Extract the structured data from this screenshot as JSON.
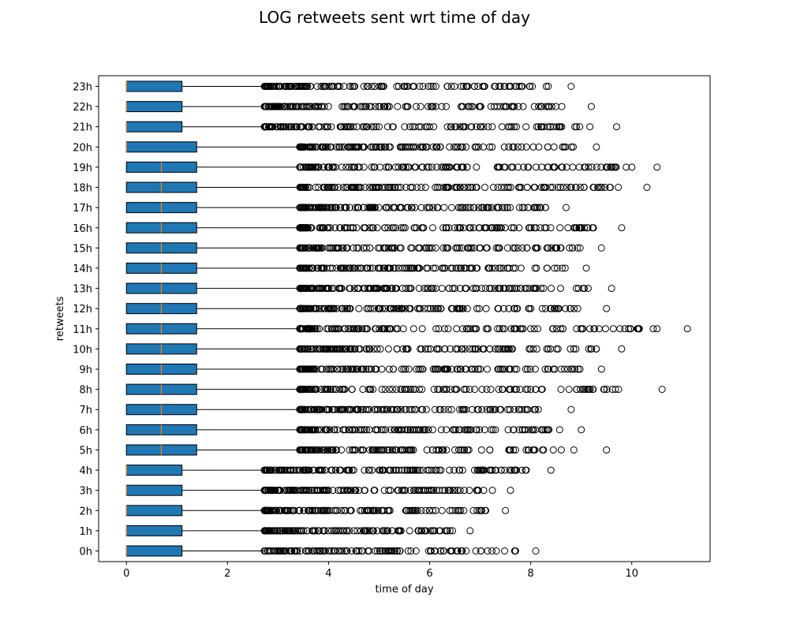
{
  "chart_data": {
    "type": "box",
    "orientation": "horizontal",
    "title": "LOG retweets sent wrt time of day",
    "xlabel": "time of day",
    "ylabel": "retweets",
    "xlim": [
      -0.55,
      11.55
    ],
    "xticks": [
      0,
      2,
      4,
      6,
      8,
      10
    ],
    "categories": [
      "0h",
      "1h",
      "2h",
      "3h",
      "4h",
      "5h",
      "6h",
      "7h",
      "8h",
      "9h",
      "10h",
      "11h",
      "12h",
      "13h",
      "14h",
      "15h",
      "16h",
      "17h",
      "18h",
      "19h",
      "20h",
      "21h",
      "22h",
      "23h"
    ],
    "box_color": "#1f77b4",
    "median_color": "#ff7f0e",
    "grid": false,
    "boxes": [
      {
        "category": "0h",
        "whisker_low": 0,
        "q1": 0,
        "median": 0,
        "q3": 1.1,
        "whisker_high": 2.7,
        "max_outlier": 8.1
      },
      {
        "category": "1h",
        "whisker_low": 0,
        "q1": 0,
        "median": 0,
        "q3": 1.1,
        "whisker_high": 2.7,
        "max_outlier": 6.8
      },
      {
        "category": "2h",
        "whisker_low": 0,
        "q1": 0,
        "median": 0,
        "q3": 1.1,
        "whisker_high": 2.7,
        "max_outlier": 7.5
      },
      {
        "category": "3h",
        "whisker_low": 0,
        "q1": 0,
        "median": 0,
        "q3": 1.1,
        "whisker_high": 2.7,
        "max_outlier": 7.6
      },
      {
        "category": "4h",
        "whisker_low": 0,
        "q1": 0,
        "median": 0,
        "q3": 1.1,
        "whisker_high": 2.7,
        "max_outlier": 8.4
      },
      {
        "category": "5h",
        "whisker_low": 0,
        "q1": 0,
        "median": 0.69,
        "q3": 1.39,
        "whisker_high": 3.4,
        "max_outlier": 9.5
      },
      {
        "category": "6h",
        "whisker_low": 0,
        "q1": 0,
        "median": 0.69,
        "q3": 1.39,
        "whisker_high": 3.4,
        "max_outlier": 9.0
      },
      {
        "category": "7h",
        "whisker_low": 0,
        "q1": 0,
        "median": 0.69,
        "q3": 1.39,
        "whisker_high": 3.4,
        "max_outlier": 8.8
      },
      {
        "category": "8h",
        "whisker_low": 0,
        "q1": 0,
        "median": 0.69,
        "q3": 1.39,
        "whisker_high": 3.4,
        "max_outlier": 10.6
      },
      {
        "category": "9h",
        "whisker_low": 0,
        "q1": 0,
        "median": 0.69,
        "q3": 1.39,
        "whisker_high": 3.4,
        "max_outlier": 9.4
      },
      {
        "category": "10h",
        "whisker_low": 0,
        "q1": 0,
        "median": 0.69,
        "q3": 1.39,
        "whisker_high": 3.4,
        "max_outlier": 9.8
      },
      {
        "category": "11h",
        "whisker_low": 0,
        "q1": 0,
        "median": 0.69,
        "q3": 1.39,
        "whisker_high": 3.4,
        "max_outlier": 11.1
      },
      {
        "category": "12h",
        "whisker_low": 0,
        "q1": 0,
        "median": 0.69,
        "q3": 1.39,
        "whisker_high": 3.4,
        "max_outlier": 9.5
      },
      {
        "category": "13h",
        "whisker_low": 0,
        "q1": 0,
        "median": 0.69,
        "q3": 1.39,
        "whisker_high": 3.4,
        "max_outlier": 9.6
      },
      {
        "category": "14h",
        "whisker_low": 0,
        "q1": 0,
        "median": 0.69,
        "q3": 1.39,
        "whisker_high": 3.4,
        "max_outlier": 9.1
      },
      {
        "category": "15h",
        "whisker_low": 0,
        "q1": 0,
        "median": 0.69,
        "q3": 1.39,
        "whisker_high": 3.4,
        "max_outlier": 9.4
      },
      {
        "category": "16h",
        "whisker_low": 0,
        "q1": 0,
        "median": 0.69,
        "q3": 1.39,
        "whisker_high": 3.4,
        "max_outlier": 9.8
      },
      {
        "category": "17h",
        "whisker_low": 0,
        "q1": 0,
        "median": 0.69,
        "q3": 1.39,
        "whisker_high": 3.4,
        "max_outlier": 8.7
      },
      {
        "category": "18h",
        "whisker_low": 0,
        "q1": 0,
        "median": 0.69,
        "q3": 1.39,
        "whisker_high": 3.4,
        "max_outlier": 10.3
      },
      {
        "category": "19h",
        "whisker_low": 0,
        "q1": 0,
        "median": 0.69,
        "q3": 1.39,
        "whisker_high": 3.4,
        "max_outlier": 10.5
      },
      {
        "category": "20h",
        "whisker_low": 0,
        "q1": 0,
        "median": 0,
        "q3": 1.39,
        "whisker_high": 3.4,
        "max_outlier": 9.3
      },
      {
        "category": "21h",
        "whisker_low": 0,
        "q1": 0,
        "median": 0,
        "q3": 1.1,
        "whisker_high": 2.7,
        "max_outlier": 9.7
      },
      {
        "category": "22h",
        "whisker_low": 0,
        "q1": 0,
        "median": 0,
        "q3": 1.1,
        "whisker_high": 2.7,
        "max_outlier": 9.2
      },
      {
        "category": "23h",
        "whisker_low": 0,
        "q1": 0,
        "median": 0,
        "q3": 1.1,
        "whisker_high": 2.7,
        "max_outlier": 8.8
      }
    ]
  }
}
